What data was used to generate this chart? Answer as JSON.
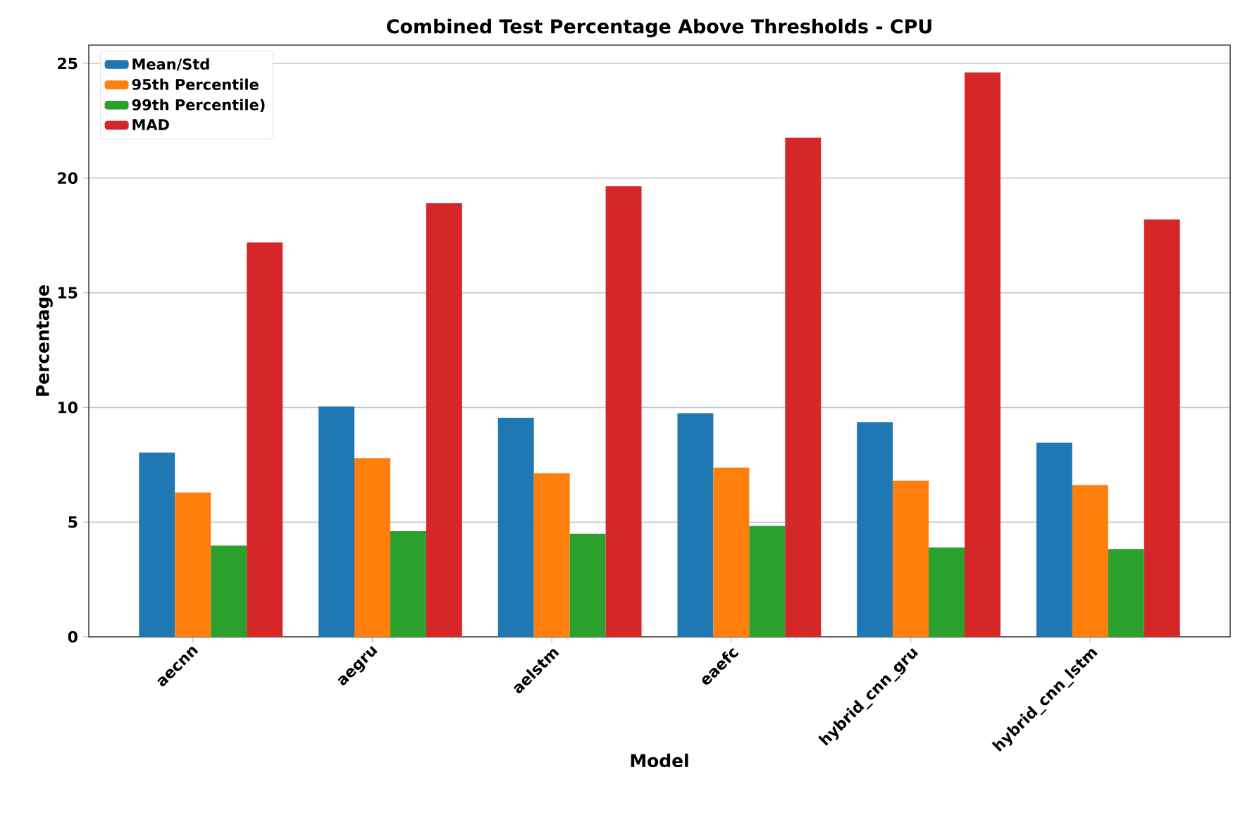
{
  "chart_data": {
    "type": "bar",
    "title": "Combined Test Percentage Above Thresholds - CPU",
    "xlabel": "Model",
    "ylabel": "Percentage",
    "categories": [
      "aecnn",
      "aegru",
      "aelstm",
      "eaefc",
      "hybrid_cnn_gru",
      "hybrid_cnn_lstm"
    ],
    "series": [
      {
        "name": "Mean/Std",
        "color": "#1f77b4",
        "values": [
          8.03,
          10.04,
          9.55,
          9.75,
          9.36,
          8.46
        ]
      },
      {
        "name": "95th Percentile",
        "color": "#ff7f0e",
        "values": [
          6.29,
          7.79,
          7.13,
          7.38,
          6.8,
          6.62
        ]
      },
      {
        "name": "99th Percentile)",
        "color": "#2ca02c",
        "values": [
          3.98,
          4.61,
          4.49,
          4.84,
          3.89,
          3.83
        ]
      },
      {
        "name": "MAD",
        "color": "#d62728",
        "values": [
          17.19,
          18.91,
          19.65,
          21.76,
          24.61,
          18.2
        ]
      }
    ],
    "ylim": [
      0,
      25.8
    ],
    "yticks": [
      0,
      5,
      10,
      15,
      20,
      25
    ],
    "grid": "y",
    "legend": "top left"
  }
}
